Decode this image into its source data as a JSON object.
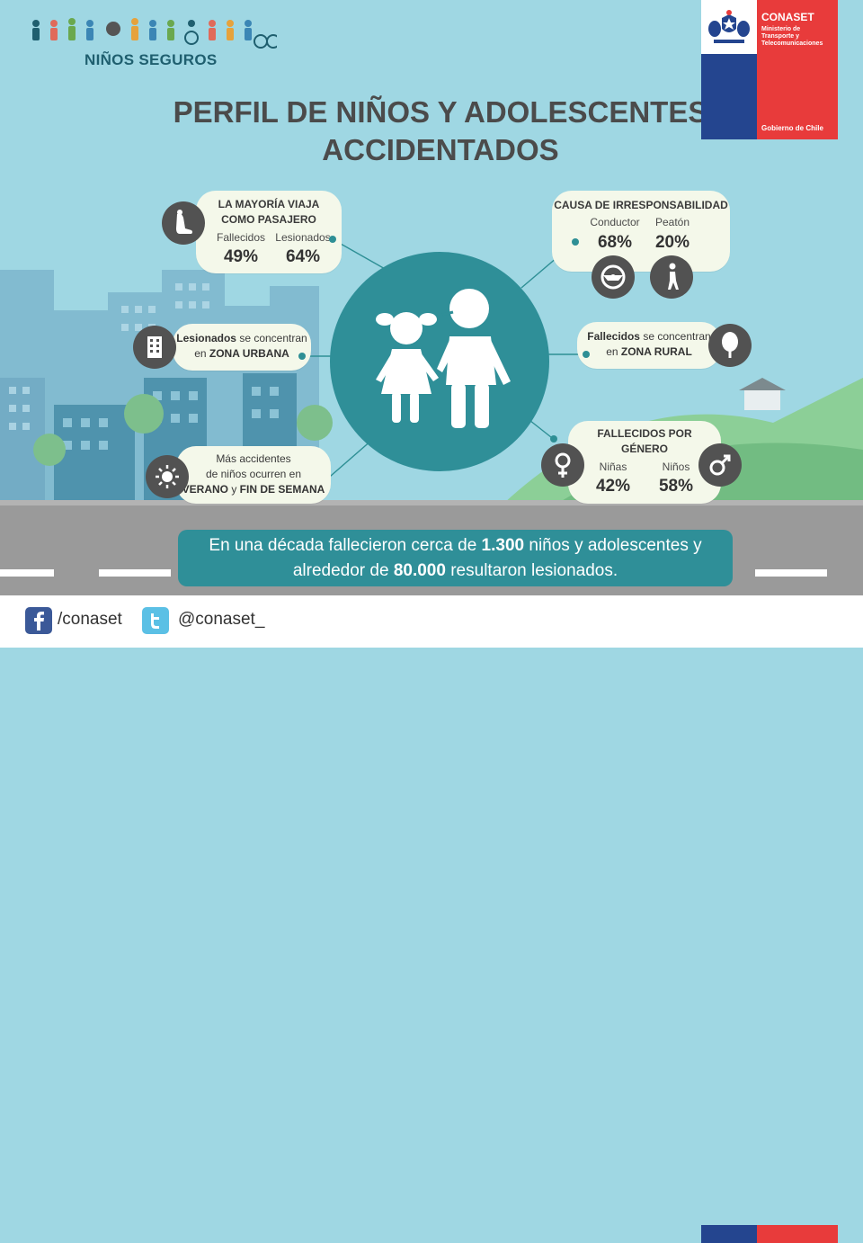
{
  "brand": {
    "name": "NIÑOS SEGUROS"
  },
  "title": {
    "line1": "PERFIL DE NIÑOS Y ADOLESCENTES",
    "line2": "ACCIDENTADOS"
  },
  "gov": {
    "name": "CONASET",
    "ministry_line1": "Ministerio de",
    "ministry_line2": "Transporte y",
    "ministry_line3": "Telecomunicaciones",
    "footer": "Gobierno de Chile"
  },
  "passenger": {
    "title_line1": "LA MAYORÍA VIAJA",
    "title_line2": "COMO PASAJERO",
    "dead_label": "Fallecidos",
    "dead_pct": "49%",
    "injured_label": "Lesionados",
    "injured_pct": "64%",
    "icon": "car-seat-icon"
  },
  "cause": {
    "title": "CAUSA DE IRRESPONSABILIDAD",
    "driver_label": "Conductor",
    "driver_pct": "68%",
    "pedestrian_label": "Peatón",
    "pedestrian_pct": "20%",
    "icons": [
      "steering-wheel-icon",
      "pedestrian-icon"
    ]
  },
  "urban": {
    "bold": "Lesionados",
    "rest": " se concentran",
    "line2_pre": "en ",
    "line2_bold": "ZONA URBANA",
    "icon": "building-icon"
  },
  "rural": {
    "bold": "Fallecidos",
    "rest": " se concentran",
    "line2_pre": "en ",
    "line2_bold": "ZONA RURAL",
    "icon": "tree-icon"
  },
  "season": {
    "line1": "Más accidentes",
    "line2": "de niños ocurren en",
    "line3_bold1": "VERANO",
    "line3_mid": " y ",
    "line3_bold2": "FIN DE SEMANA",
    "icon": "sun-icon"
  },
  "gender": {
    "title_line1": "FALLECIDOS POR",
    "title_line2": "GÉNERO",
    "girls_label": "Niñas",
    "girls_pct": "42%",
    "boys_label": "Niños",
    "boys_pct": "58%",
    "icons": [
      "female-symbol-icon",
      "male-symbol-icon"
    ]
  },
  "banner": {
    "part1": "En una década fallecieron cerca de ",
    "bold1": "1.300",
    "part2": " niños y adolescentes y",
    "part3": "alrededor de ",
    "bold2": "80.000",
    "part4": " resultaron lesionados."
  },
  "social": {
    "facebook": "/conaset",
    "twitter": "@conaset_"
  },
  "colors": {
    "teal": "#2f8f98",
    "sky": "#9fd7e3",
    "card": "#f4f8ea",
    "icon_dark": "#525252",
    "gov_blue": "#24458f",
    "gov_red": "#e83b3b"
  }
}
